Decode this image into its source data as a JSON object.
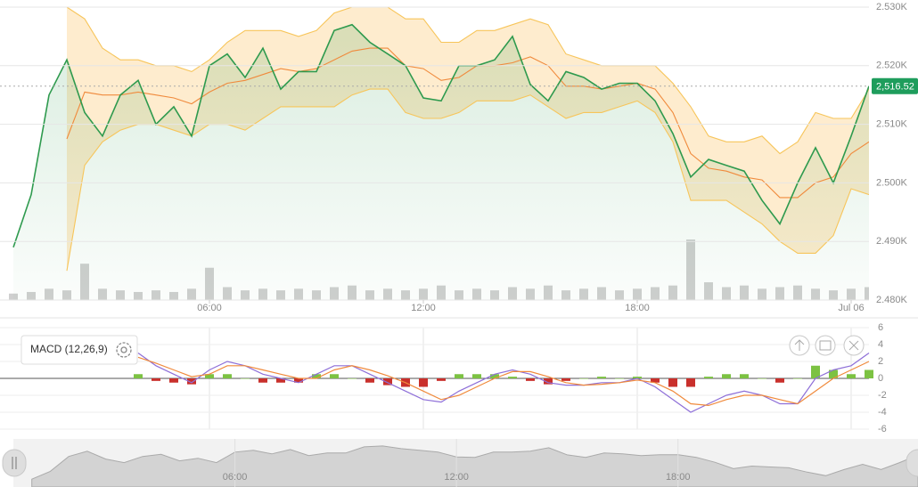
{
  "chart_data": {
    "type": "line",
    "x": [
      0.5,
      1,
      1.5,
      2,
      2.5,
      3,
      3.5,
      4,
      4.5,
      5,
      5.5,
      6,
      6.5,
      7,
      7.5,
      8,
      8.5,
      9,
      9.5,
      10,
      10.5,
      11,
      11.5,
      12,
      12.5,
      13,
      13.5,
      14,
      14.5,
      15,
      15.5,
      16,
      16.5,
      17,
      17.5,
      18,
      18.5,
      19,
      19.5,
      20,
      20.5,
      21,
      21.5,
      22,
      22.5,
      23,
      23.5,
      24,
      24.5
    ],
    "xlim": [
      0.125,
      24.5
    ],
    "xticks": [
      {
        "value": 6,
        "label": "06:00"
      },
      {
        "value": 12,
        "label": "12:00"
      },
      {
        "value": 18,
        "label": "18:00"
      },
      {
        "value": 24,
        "label": "Jul 06"
      }
    ],
    "ylim": [
      2480,
      2530
    ],
    "yticks": [
      {
        "value": 2530,
        "label": "2.530K"
      },
      {
        "value": 2520,
        "label": "2.520K"
      },
      {
        "value": 2510,
        "label": "2.510K"
      },
      {
        "value": 2500,
        "label": "2.500K"
      },
      {
        "value": 2490,
        "label": "2.490K"
      },
      {
        "value": 2480,
        "label": "2.480K"
      }
    ],
    "grid": true,
    "series": [
      {
        "color": "#2e9a4e",
        "values": [
          2489,
          2498,
          2515,
          2521,
          2512,
          2508,
          2515,
          2517.5,
          2510,
          2513,
          2508,
          2520,
          2522,
          2518,
          2523,
          2516,
          2519,
          2519,
          2526,
          2527,
          2524,
          2522,
          2520,
          2514.5,
          2514,
          2520,
          2520,
          2521,
          2525,
          2516.8,
          2514,
          2519,
          2518,
          2516,
          2517,
          2517,
          2514,
          2508.4,
          2501,
          2504,
          2503,
          2502,
          2497,
          2493,
          2500,
          2506,
          2500,
          2508,
          2516.52
        ]
      },
      {
        "color": "#f7c55a",
        "values": [
          null,
          null,
          null,
          2530,
          2528,
          2523,
          2521,
          2521,
          2520,
          2520,
          2519,
          2521,
          2524,
          2526,
          2526,
          2526,
          2525,
          2526,
          2529,
          2530,
          2530,
          2530,
          2528,
          2528,
          2524,
          2524,
          2526,
          2526,
          2527,
          2528,
          2527,
          2522,
          2521,
          2520,
          2520,
          2520,
          2520,
          2517,
          2513,
          2508,
          2507,
          2507,
          2508,
          2505,
          2507,
          2512,
          2511,
          2511,
          2516
        ]
      },
      {
        "color": "#f08a3c",
        "values": [
          null,
          null,
          null,
          2507.5,
          2515.5,
          2515,
          2515,
          2515.5,
          2515,
          2514.5,
          2513.5,
          2515.5,
          2517,
          2517.5,
          2518.5,
          2519.5,
          2519,
          2519.5,
          2521,
          2522.5,
          2523,
          2523,
          2520,
          2519.5,
          2517.5,
          2518,
          2520,
          2520,
          2520.5,
          2521.5,
          2520,
          2516.5,
          2516.5,
          2516,
          2516.5,
          2517,
          2516,
          2512,
          2505,
          2502.5,
          2502,
          2501,
          2500.5,
          2497.5,
          2497.5,
          2500,
          2501,
          2505,
          2507
        ]
      },
      {
        "color": "#f7c55a",
        "values": [
          null,
          null,
          null,
          2485,
          2503,
          2507,
          2509,
          2510,
          2510,
          2509,
          2508,
          2510,
          2510,
          2509,
          2511,
          2513,
          2513,
          2513,
          2513,
          2515,
          2516,
          2516,
          2512,
          2511,
          2511,
          2512,
          2514,
          2514,
          2514,
          2515,
          2513,
          2511,
          2512,
          2512,
          2513,
          2514,
          2512,
          2507,
          2497,
          2497,
          2497,
          2495,
          2493,
          2490,
          2488,
          2488,
          2491,
          2499,
          2498
        ]
      }
    ],
    "band_fill": "#fde6bd",
    "last_price": {
      "value": 2516.52,
      "label": "2,516.52",
      "color": "#1e9d5c"
    },
    "volume": {
      "color": "#cfcfcf",
      "values": [
        8,
        10,
        14,
        12,
        45,
        14,
        12,
        10,
        12,
        10,
        14,
        40,
        16,
        12,
        14,
        12,
        14,
        12,
        16,
        18,
        12,
        14,
        12,
        14,
        18,
        12,
        14,
        12,
        16,
        14,
        18,
        12,
        14,
        16,
        12,
        14,
        16,
        18,
        75,
        22,
        16,
        18,
        14,
        16,
        18,
        14,
        12,
        14,
        16
      ]
    },
    "macd": {
      "title": "MACD (12,26,9)",
      "ylim": [
        -6,
        6
      ],
      "yticks": [
        6,
        4,
        2,
        0,
        -2,
        -4,
        -6
      ],
      "series": [
        {
          "color": "#8e6fd8",
          "values": [
            null,
            null,
            null,
            null,
            null,
            null,
            null,
            3,
            1.5,
            0.5,
            -0.5,
            1,
            2,
            1.5,
            0.5,
            0,
            -0.5,
            0.5,
            1.5,
            1.5,
            0.5,
            -0.5,
            -1.5,
            -2.5,
            -2.8,
            -1.5,
            -0.5,
            0.5,
            1,
            0.5,
            -0.5,
            -0.8,
            -0.8,
            -0.5,
            -0.5,
            0,
            -1,
            -2.5,
            -4,
            -3,
            -2,
            -1.5,
            -2,
            -3,
            -3,
            0,
            1,
            1.5,
            3
          ]
        },
        {
          "color": "#f08a3c",
          "values": [
            null,
            null,
            null,
            null,
            null,
            null,
            null,
            2.5,
            1.8,
            1,
            0.2,
            0.5,
            1.5,
            1.5,
            1,
            0.5,
            0,
            0,
            1,
            1.5,
            1,
            0.3,
            -0.5,
            -1.5,
            -2.5,
            -2,
            -1,
            0,
            0.8,
            0.8,
            0.2,
            -0.5,
            -0.8,
            -0.7,
            -0.5,
            -0.2,
            -0.5,
            -1.5,
            -3,
            -3.2,
            -2.5,
            -2,
            -2,
            -2.5,
            -3,
            -1.5,
            0,
            1,
            2
          ]
        }
      ],
      "histogram": {
        "positive_color": "#7cc242",
        "negative_color": "#c9302c",
        "values": [
          null,
          null,
          null,
          null,
          null,
          null,
          null,
          0.5,
          -0.3,
          -0.5,
          -0.7,
          0.5,
          0.5,
          0,
          -0.5,
          -0.5,
          -0.5,
          0.5,
          0.5,
          0,
          -0.5,
          -0.8,
          -1,
          -1,
          -0.3,
          0.5,
          0.5,
          0.5,
          0.2,
          -0.3,
          -0.7,
          -0.3,
          0,
          0.2,
          0,
          0.2,
          -0.5,
          -1,
          -1,
          0.2,
          0.5,
          0.5,
          0,
          -0.5,
          0,
          1.5,
          1,
          0.5,
          1
        ]
      }
    },
    "navigator": {
      "xlim": [
        0,
        24.5
      ],
      "xticks": [
        {
          "value": 6,
          "label": "06:00"
        },
        {
          "value": 12,
          "label": "12:00"
        },
        {
          "value": 18,
          "label": "18:00"
        }
      ]
    }
  }
}
